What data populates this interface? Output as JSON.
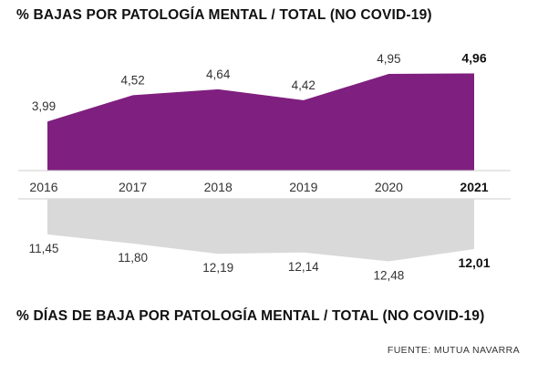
{
  "titles": {
    "top": "% BAJAS POR PATOLOGÍA MENTAL / TOTAL (NO COVID-19)",
    "bottom": "% DÍAS DE BAJA POR PATOLOGÍA MENTAL / TOTAL (NO COVID-19)"
  },
  "source": "FUENTE: MUTUA NAVARRA",
  "colors": {
    "top_area": "#7f1f7f",
    "bottom_area": "#d9d9d9",
    "axis": "#cccccc",
    "text": "#333333"
  },
  "chart_data": [
    {
      "type": "area",
      "title": "% BAJAS POR PATOLOGÍA MENTAL / TOTAL (NO COVID-19)",
      "x": [
        "2016",
        "2017",
        "2018",
        "2019",
        "2020",
        "2021"
      ],
      "values": [
        3.99,
        4.52,
        4.64,
        4.42,
        4.95,
        4.96
      ],
      "value_labels": [
        "3,99",
        "4,52",
        "4,64",
        "4,42",
        "4,95",
        "4,96"
      ],
      "highlight_last": true,
      "grid": false,
      "direction": "up"
    },
    {
      "type": "area",
      "title": "% DÍAS DE BAJA POR PATOLOGÍA MENTAL / TOTAL (NO COVID-19)",
      "x": [
        "2016",
        "2017",
        "2018",
        "2019",
        "2020",
        "2021"
      ],
      "values": [
        11.45,
        11.8,
        12.19,
        12.14,
        12.48,
        12.01
      ],
      "value_labels": [
        "11,45",
        "11,80",
        "12,19",
        "12,14",
        "12,48",
        "12,01"
      ],
      "highlight_last": true,
      "grid": false,
      "direction": "down"
    }
  ]
}
